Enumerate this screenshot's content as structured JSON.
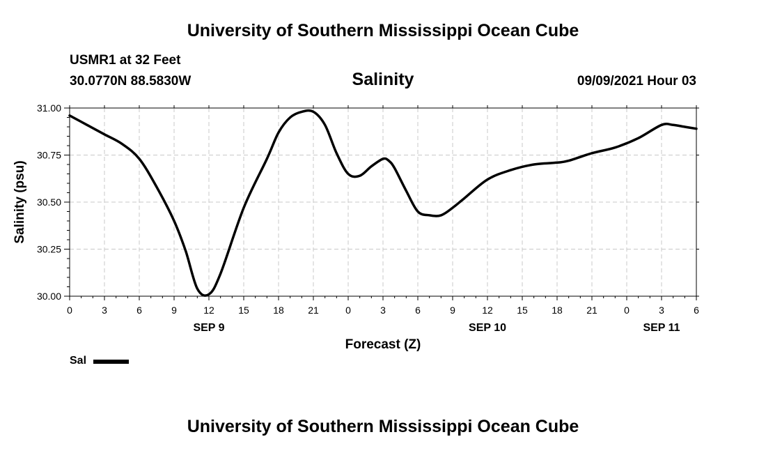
{
  "page": {
    "title_top": "University of Southern Mississippi Ocean Cube",
    "title_bottom": "University of Southern Mississippi Ocean Cube",
    "station": "USMR1 at 32 Feet",
    "coords": "30.0770N  88.5830W",
    "datetime": "09/09/2021 Hour 03"
  },
  "legend": {
    "label": "Sal"
  },
  "chart_data": {
    "type": "line",
    "title": "Salinity",
    "xlabel": "Forecast (Z)",
    "ylabel": "Salinity (psu)",
    "x_unit": "forecast hour from 00Z SEP 9",
    "xlim": [
      0,
      54
    ],
    "ylim": [
      30.0,
      31.0
    ],
    "x_ticks": [
      0,
      3,
      6,
      9,
      12,
      15,
      18,
      21,
      24,
      27,
      30,
      33,
      36,
      39,
      42,
      45,
      48,
      51,
      54
    ],
    "x_tick_labels": [
      "0",
      "3",
      "6",
      "9",
      "12",
      "15",
      "18",
      "21",
      "0",
      "3",
      "6",
      "9",
      "12",
      "15",
      "18",
      "21",
      "0",
      "3",
      "6"
    ],
    "date_labels": [
      {
        "x": 12,
        "label": "SEP 9"
      },
      {
        "x": 36,
        "label": "SEP 10"
      },
      {
        "x": 51,
        "label": "SEP 11"
      }
    ],
    "y_ticks": [
      30.0,
      30.25,
      30.5,
      30.75,
      31.0
    ],
    "y_tick_labels": [
      "30.00",
      "30.25",
      "30.50",
      "30.75",
      "31.00"
    ],
    "grid": true,
    "legend_position": "bottom-left",
    "series": [
      {
        "name": "Sal",
        "color": "#000000",
        "x": [
          0,
          1.5,
          3,
          4.5,
          6,
          7.5,
          9,
          10,
          11,
          12,
          13,
          15,
          17,
          18,
          19,
          20,
          21,
          22,
          23,
          24,
          25,
          26,
          27,
          27.5,
          28,
          29,
          30,
          31,
          32,
          33,
          34,
          36,
          38,
          40,
          42,
          43,
          45,
          47,
          49,
          51,
          52,
          53,
          54
        ],
        "y": [
          30.96,
          30.91,
          30.86,
          30.81,
          30.73,
          30.58,
          30.4,
          30.24,
          30.04,
          30.01,
          30.12,
          30.47,
          30.73,
          30.87,
          30.95,
          30.98,
          30.98,
          30.91,
          30.76,
          30.65,
          30.64,
          30.69,
          30.73,
          30.72,
          30.68,
          30.56,
          30.45,
          30.43,
          30.43,
          30.47,
          30.52,
          30.62,
          30.67,
          30.7,
          30.71,
          30.72,
          30.76,
          30.79,
          30.84,
          30.91,
          30.91,
          30.9,
          30.89
        ]
      }
    ]
  }
}
